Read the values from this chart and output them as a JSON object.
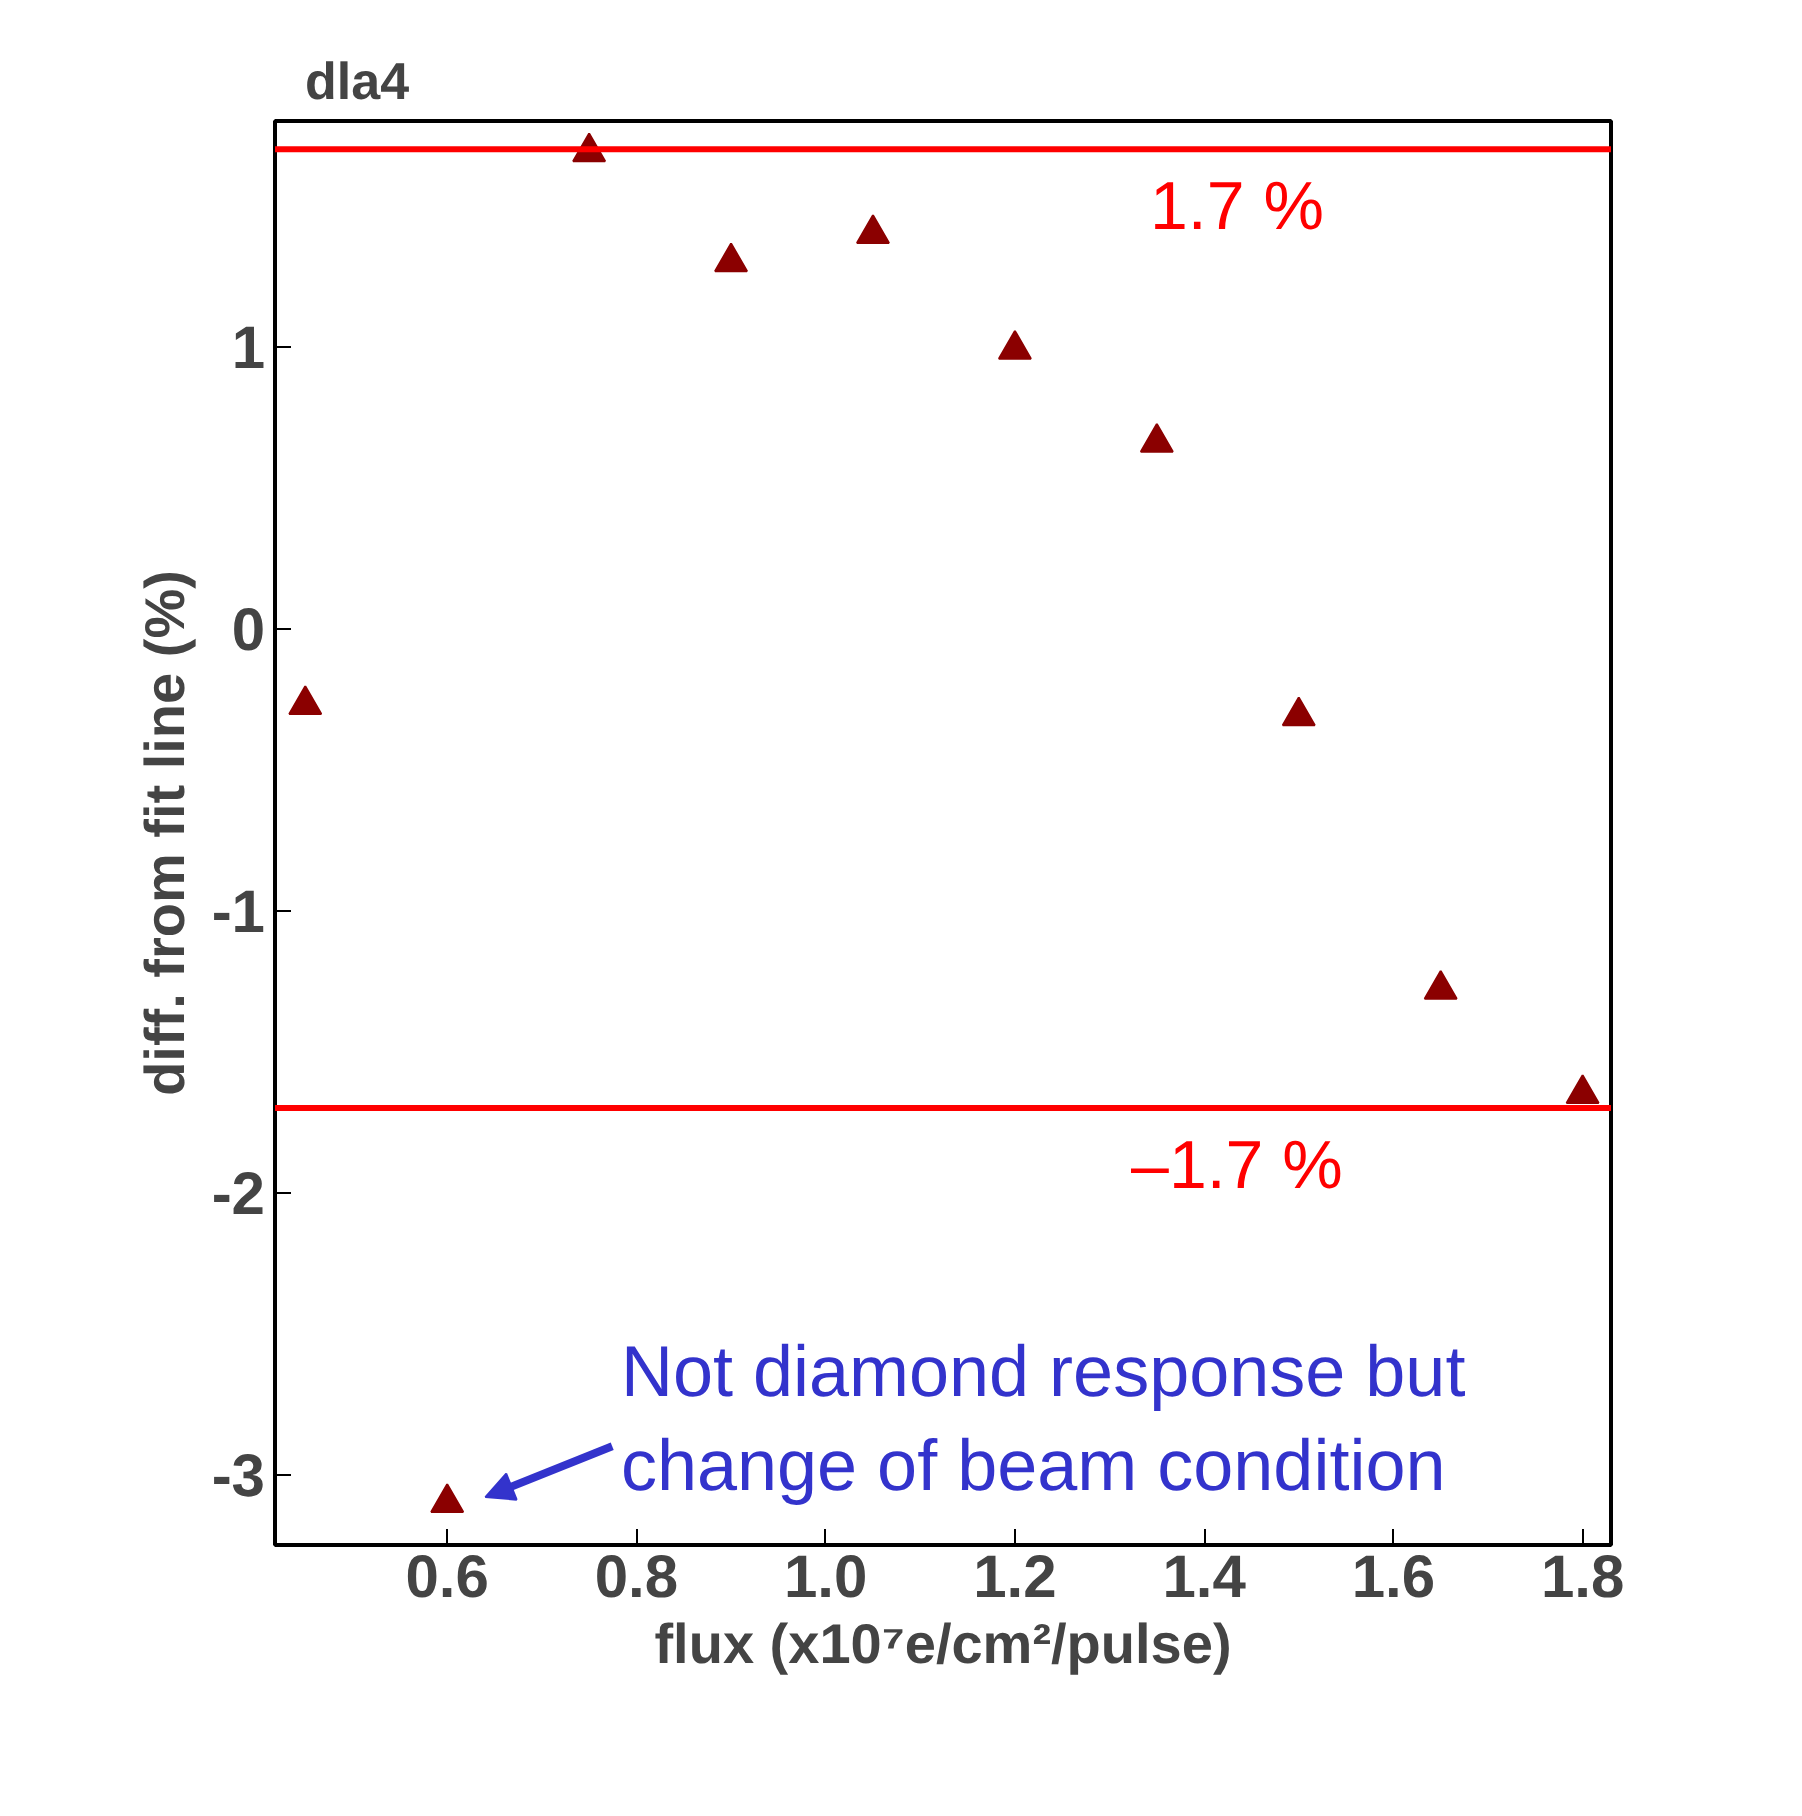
{
  "chart_data": {
    "type": "scatter",
    "title": "dla4",
    "xlabel": "flux (x10⁷e/cm²/pulse)",
    "ylabel": "diff. from fit line (%)",
    "x": [
      0.45,
      0.6,
      0.75,
      0.9,
      1.05,
      1.2,
      1.35,
      1.5,
      1.65,
      1.8
    ],
    "series": [
      {
        "color": "#8b0000",
        "values": [
          -0.27,
          -3.1,
          1.69,
          1.3,
          1.4,
          0.99,
          0.66,
          -0.31,
          -1.28,
          -1.65
        ]
      }
    ],
    "marker": "triangle",
    "grid": false,
    "xlim": [
      0.418,
      1.83
    ],
    "xticks": [
      0.6,
      {
        "value": 0.8,
        "label": "0.8"
      },
      {
        "value": 1.0,
        "label": "1.0"
      },
      1.2,
      1.4,
      1.6,
      1.8
    ],
    "ylim": [
      -3.25,
      1.8
    ],
    "yticks": [
      -3,
      -2,
      -1,
      0,
      1
    ],
    "ref_lines": [
      {
        "axis": "y",
        "value": 1.7,
        "label": "1.7 %",
        "color": "#ff0000",
        "line_style": "solid"
      },
      {
        "axis": "y",
        "value": -1.7,
        "label": "–1.7 %",
        "color": "#ff0000",
        "line_style": "solid"
      }
    ],
    "annotations": [
      {
        "text": "Not diamond response but\nchange of beam condition",
        "x": 0.6,
        "y": -3.1
      }
    ]
  }
}
